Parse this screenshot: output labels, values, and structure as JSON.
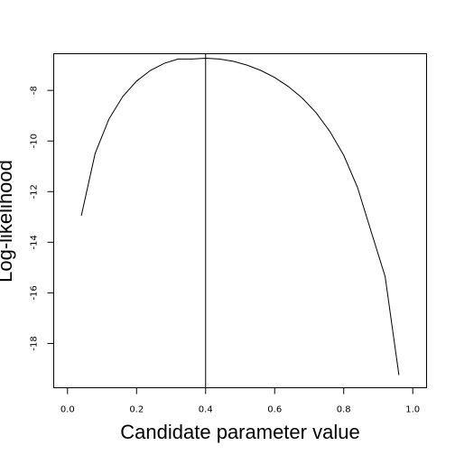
{
  "chart_data": {
    "type": "line",
    "xlabel": "Candidate parameter value",
    "ylabel": "Log-likelihood",
    "xlim": [
      -0.04,
      1.04
    ],
    "ylim": [
      -19.75,
      -6.55
    ],
    "x_ticks": [
      0.0,
      0.2,
      0.4,
      0.6,
      0.8,
      1.0
    ],
    "x_tick_labels": [
      "0.0",
      "0.2",
      "0.4",
      "0.6",
      "0.8",
      "1.0"
    ],
    "y_ticks": [
      -18,
      -16,
      -14,
      -12,
      -10,
      -8
    ],
    "y_tick_labels": [
      "-18",
      "-16",
      "-14",
      "-12",
      "-10",
      "-8"
    ],
    "vline_x": 0.4,
    "grid": false,
    "series": [
      {
        "x": [
          0.04,
          0.08,
          0.12,
          0.16,
          0.2,
          0.24,
          0.28,
          0.32,
          0.36,
          0.4,
          0.44,
          0.48,
          0.52,
          0.56,
          0.6,
          0.64,
          0.68,
          0.72,
          0.76,
          0.8,
          0.84,
          0.88,
          0.92,
          0.96
        ],
        "y": [
          -12.95,
          -10.49,
          -9.13,
          -8.24,
          -7.63,
          -7.21,
          -6.93,
          -6.76,
          -6.76,
          -6.73,
          -6.76,
          -6.85,
          -7.0,
          -7.21,
          -7.49,
          -7.85,
          -8.3,
          -8.88,
          -9.62,
          -10.56,
          -11.83,
          -13.6,
          -15.35,
          -19.25
        ]
      }
    ]
  }
}
